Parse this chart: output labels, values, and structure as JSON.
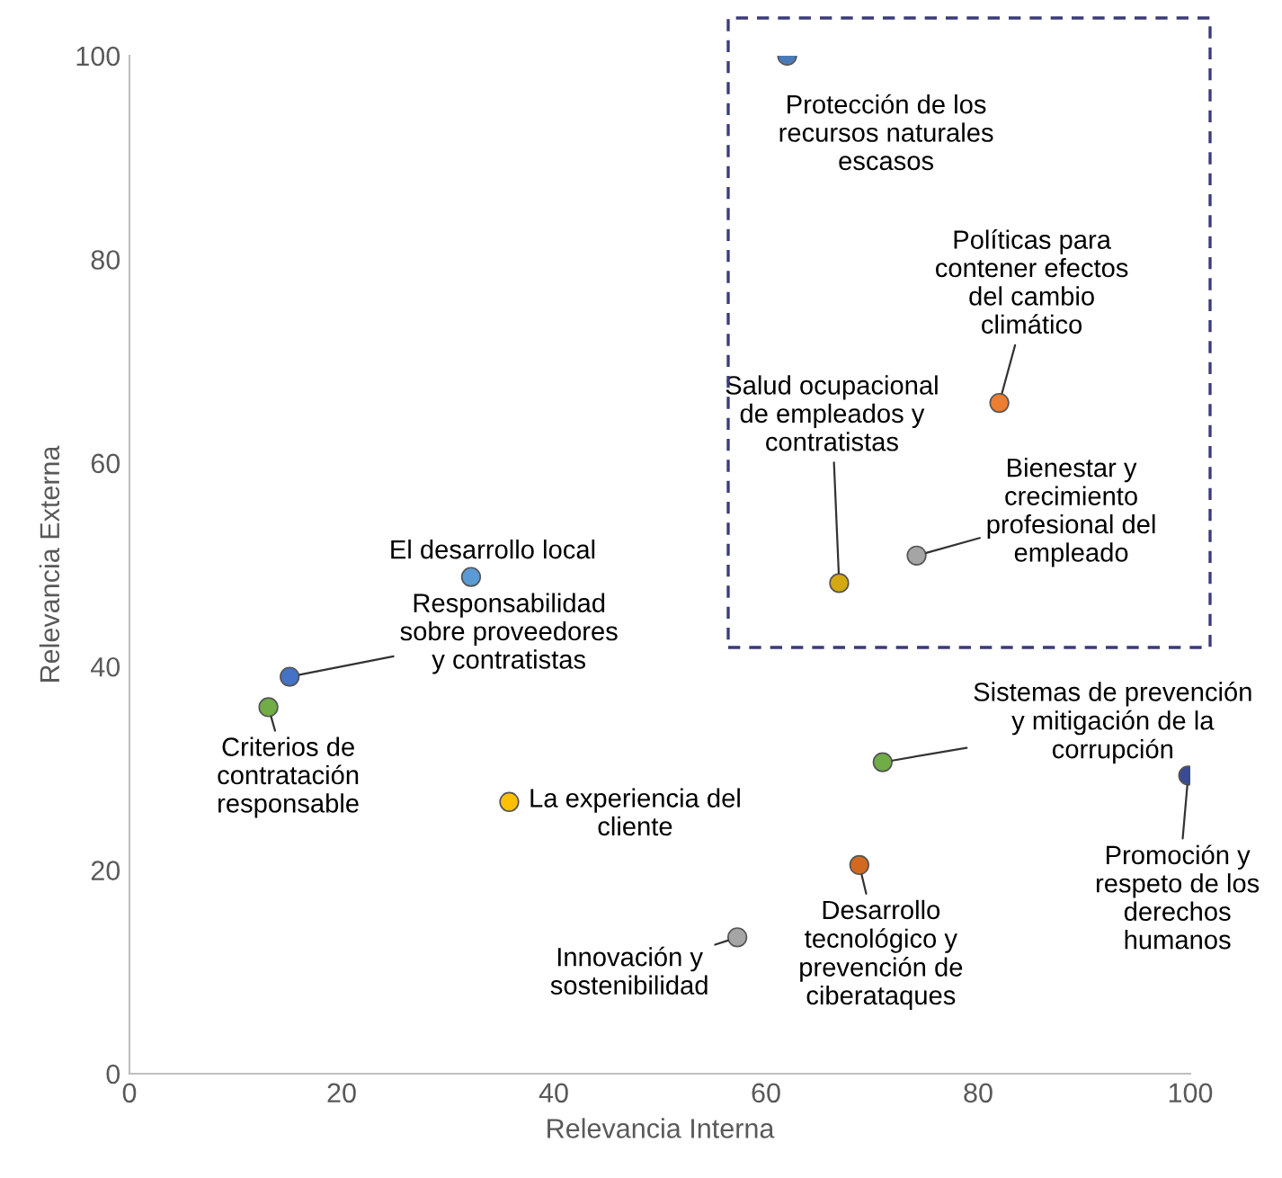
{
  "chart_data": {
    "type": "scatter",
    "xlabel": "Relevancia Interna",
    "ylabel": "Relevancia Externa",
    "x": [
      62.0,
      82.0,
      66.9,
      74.2,
      32.2,
      15.1,
      13.1,
      35.8,
      71.0,
      99.8,
      68.8,
      57.3
    ],
    "values": [
      100,
      65.9,
      48.2,
      50.9,
      48.8,
      39.0,
      36.0,
      26.7,
      30.6,
      29.3,
      20.5,
      13.4
    ],
    "colors": [
      "#4a7ab8",
      "#ed7d31",
      "#d4a910",
      "#a5a5a5",
      "#5b9bd5",
      "#4472c4",
      "#70ad47",
      "#ffc000",
      "#70ad47",
      "#3b4a95",
      "#d2691e",
      "#a5a5a5"
    ],
    "marker": "circle",
    "xlim": [
      0,
      100
    ],
    "ylim": [
      0,
      100
    ],
    "xticks": [
      0,
      20,
      40,
      60,
      80,
      100
    ],
    "yticks": [
      0,
      20,
      40,
      60,
      80,
      100
    ],
    "grid": false,
    "annotations": [
      {
        "text": "Protección de los\nrecursos naturales\nescasos",
        "x": 62.0,
        "y": 100
      },
      {
        "text": "Políticas para\ncontener efectos\ndel cambio\nclimático",
        "x": 82.0,
        "y": 65.9
      },
      {
        "text": "Salud ocupacional\nde empleados y\ncontratistas",
        "x": 66.9,
        "y": 48.2
      },
      {
        "text": "Bienestar y\ncrecimiento\nprofesional del\nempleado",
        "x": 74.2,
        "y": 50.9
      },
      {
        "text": "El desarrollo local",
        "x": 32.2,
        "y": 48.8
      },
      {
        "text": "Responsabilidad\nsobre proveedores\ny contratistas",
        "x": 15.1,
        "y": 39.0
      },
      {
        "text": "Criterios de\ncontratación\nresponsable",
        "x": 13.1,
        "y": 36.0
      },
      {
        "text": "La experiencia del\ncliente",
        "x": 35.8,
        "y": 26.7
      },
      {
        "text": "Sistemas de prevención\ny mitigación de la\ncorrupción",
        "x": 71.0,
        "y": 30.6
      },
      {
        "text": "Promoción y\nrespeto de los\nderechos\nhumanos",
        "x": 99.8,
        "y": 29.3
      },
      {
        "text": "Desarrollo\ntecnológico y\nprevención de\nciberataques",
        "x": 68.8,
        "y": 20.5
      },
      {
        "text": "Innovación y\nsostenibilidad",
        "x": 57.3,
        "y": 13.4
      }
    ]
  }
}
